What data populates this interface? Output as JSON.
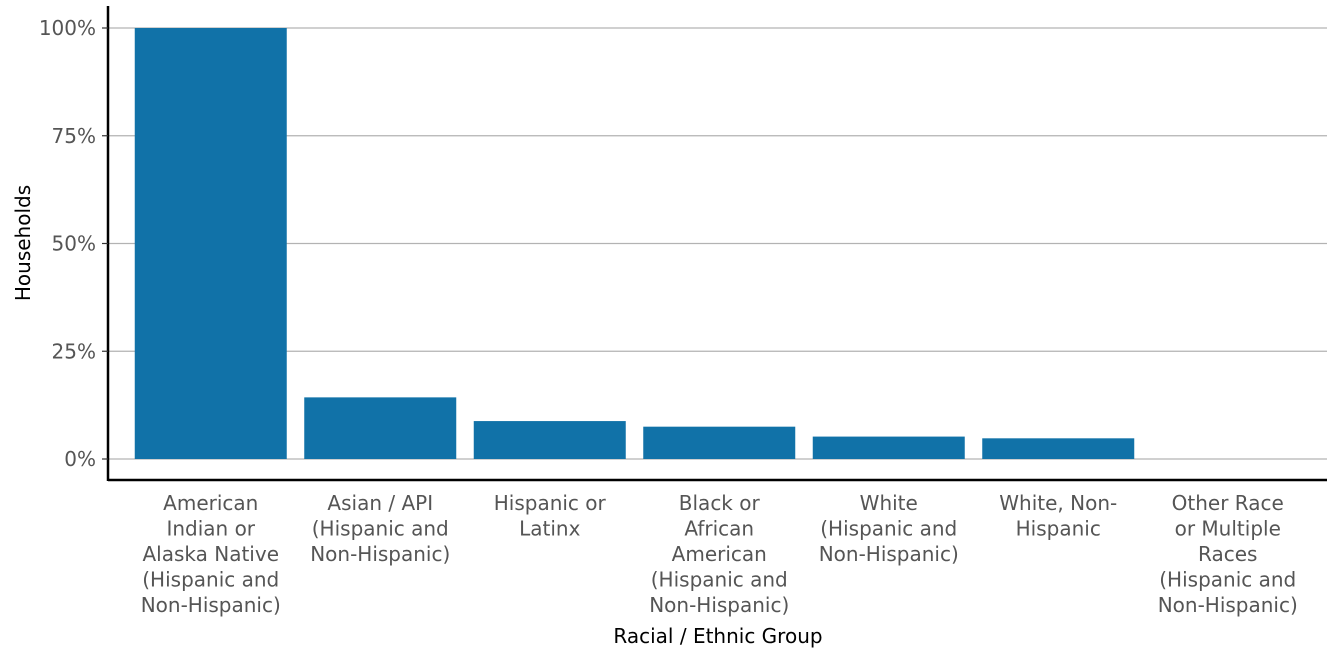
{
  "chart_data": {
    "type": "bar",
    "xlabel": "Racial / Ethnic Group",
    "ylabel": "Households",
    "ylim": [
      0,
      100
    ],
    "yticks": [
      {
        "value": 0,
        "label": "0%"
      },
      {
        "value": 25,
        "label": "25%"
      },
      {
        "value": 50,
        "label": "50%"
      },
      {
        "value": 75,
        "label": "75%"
      },
      {
        "value": 100,
        "label": "100%"
      }
    ],
    "categories": [
      [
        "American",
        "Indian or",
        "Alaska Native",
        "(Hispanic and",
        "Non-Hispanic)"
      ],
      [
        "Asian / API",
        "(Hispanic and",
        "Non-Hispanic)"
      ],
      [
        "Hispanic or",
        "Latinx"
      ],
      [
        "Black or",
        "African",
        "American",
        "(Hispanic and",
        "Non-Hispanic)"
      ],
      [
        "White",
        "(Hispanic and",
        "Non-Hispanic)"
      ],
      [
        "White, Non-",
        "Hispanic"
      ],
      [
        "Other Race",
        "or Multiple",
        "Races",
        "(Hispanic and",
        "Non-Hispanic)"
      ]
    ],
    "values": [
      100,
      14.3,
      8.8,
      7.5,
      5.2,
      4.8,
      0
    ],
    "bar_color": "#1172a8",
    "grid": "horizontal"
  }
}
